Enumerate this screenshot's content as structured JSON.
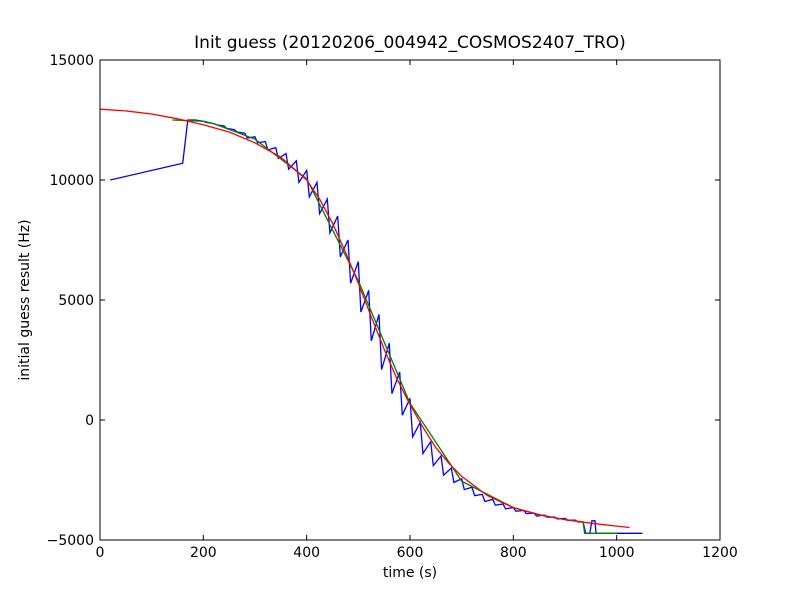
{
  "chart_data": {
    "type": "line",
    "title": "Init guess (20120206_004942_COSMOS2407_TRO)",
    "xlabel": "time (s)",
    "ylabel": "initial guess result (Hz)",
    "xlim": [
      0,
      1200
    ],
    "ylim": [
      -5000,
      15000
    ],
    "x_ticks": [
      0,
      200,
      400,
      600,
      800,
      1000,
      1200
    ],
    "y_ticks": [
      -5000,
      0,
      5000,
      10000,
      15000
    ],
    "x_tick_labels": [
      "0",
      "200",
      "400",
      "600",
      "800",
      "1000",
      "1200"
    ],
    "y_tick_labels": [
      "−5000",
      "0",
      "5000",
      "10000",
      "15000"
    ],
    "grid": false,
    "series": [
      {
        "color": "#0000ff",
        "x": [
          20,
          160,
          170,
          185,
          200,
          205,
          220,
          225,
          240,
          245,
          260,
          265,
          280,
          285,
          300,
          305,
          320,
          325,
          340,
          345,
          360,
          365,
          380,
          385,
          400,
          405,
          420,
          425,
          440,
          445,
          460,
          465,
          480,
          485,
          500,
          505,
          520,
          525,
          540,
          545,
          560,
          565,
          580,
          585,
          600,
          605,
          620,
          625,
          640,
          645,
          660,
          665,
          680,
          685,
          700,
          705,
          720,
          725,
          740,
          745,
          760,
          765,
          780,
          785,
          800,
          805,
          820,
          825,
          840,
          845,
          860,
          865,
          880,
          885,
          900,
          905,
          920,
          925,
          935,
          940,
          948,
          952,
          958,
          960,
          1050
        ],
        "y": [
          10000,
          10700,
          12500,
          12500,
          12450,
          12400,
          12350,
          12300,
          12250,
          12150,
          12100,
          12000,
          11950,
          11750,
          11800,
          11550,
          11600,
          11250,
          11350,
          10900,
          11100,
          10450,
          10800,
          9900,
          10400,
          9300,
          9900,
          8600,
          9200,
          7800,
          8500,
          6800,
          7500,
          5700,
          6600,
          4500,
          5400,
          3300,
          4400,
          2100,
          3200,
          1100,
          2000,
          200,
          900,
          -700,
          -100,
          -1400,
          -900,
          -1900,
          -1500,
          -2300,
          -2000,
          -2600,
          -2450,
          -2900,
          -2800,
          -3150,
          -3100,
          -3400,
          -3300,
          -3550,
          -3500,
          -3700,
          -3650,
          -3800,
          -3770,
          -3900,
          -3880,
          -4000,
          -3960,
          -4050,
          -4040,
          -4120,
          -4100,
          -4180,
          -4170,
          -4250,
          -4250,
          -4720,
          -4720,
          -4200,
          -4200,
          -4720,
          -4720
        ]
      },
      {
        "color": "#008000",
        "x": [
          140,
          200,
          220,
          300,
          400,
          500,
          600,
          700,
          800,
          860,
          900,
          935,
          938,
          1000
        ],
        "y": [
          12500,
          12450,
          12350,
          11700,
          10050,
          5800,
          700,
          -2550,
          -3650,
          -4000,
          -4150,
          -4250,
          -4720,
          -4720
        ]
      },
      {
        "color": "#ff0000",
        "x": [
          0,
          50,
          100,
          150,
          200,
          250,
          300,
          350,
          400,
          425,
          450,
          475,
          500,
          525,
          550,
          575,
          600,
          625,
          650,
          675,
          700,
          750,
          800,
          850,
          900,
          950,
          1000,
          1025
        ],
        "y": [
          12950,
          12880,
          12750,
          12550,
          12300,
          12000,
          11550,
          10950,
          10000,
          9200,
          8200,
          7000,
          5700,
          4300,
          2950,
          1700,
          650,
          -300,
          -1150,
          -1800,
          -2350,
          -3150,
          -3650,
          -3950,
          -4150,
          -4300,
          -4420,
          -4480
        ]
      }
    ]
  }
}
